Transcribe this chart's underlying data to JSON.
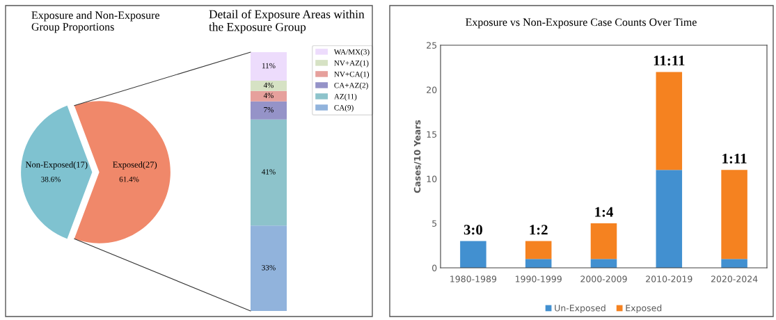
{
  "chart_data": [
    {
      "type": "pie",
      "title": "Exposure and Non-Exposure\nGroup Proportions",
      "categories": [
        "Non-Exposed(17)",
        "Exposed(27)"
      ],
      "values": [
        38.6,
        61.4
      ],
      "value_labels": [
        "38.6%",
        "61.4%"
      ],
      "colors": [
        "#7fc2d0",
        "#f0886a"
      ]
    },
    {
      "type": "bar",
      "title": "Detail of Exposure Areas within\nthe Exposure Group",
      "stacked": true,
      "categories": [
        null
      ],
      "legend": "right",
      "series": [
        {
          "name": "CA(9)",
          "color": "#91b3dc",
          "values": [
            33
          ],
          "value_labels": [
            "33%"
          ]
        },
        {
          "name": "AZ(11)",
          "color": "#8dc3cb",
          "values": [
            41
          ],
          "value_labels": [
            "41%"
          ]
        },
        {
          "name": "CA+AZ(2)",
          "color": "#9593c8",
          "values": [
            7
          ],
          "value_labels": [
            "7%"
          ]
        },
        {
          "name": "NV+CA(1)",
          "color": "#e6a09c",
          "values": [
            4
          ],
          "value_labels": [
            "4%"
          ]
        },
        {
          "name": "NV+AZ(1)",
          "color": "#d6e2c4",
          "values": [
            4
          ],
          "value_labels": [
            "4%"
          ]
        },
        {
          "name": "WA/MX(3)",
          "color": "#eddcfc",
          "values": [
            11
          ],
          "value_labels": [
            "11%"
          ]
        }
      ]
    },
    {
      "type": "bar",
      "title": "Exposure vs Non-Exposure Case Counts Over Time",
      "ylabel": "Cases/10 Years",
      "stacked": true,
      "categories": [
        "1980-1989",
        "1990-1999",
        "2000-2009",
        "2010-2019",
        "2020-2024"
      ],
      "ylim": [
        0,
        25
      ],
      "yticks": [
        0,
        5,
        10,
        15,
        20,
        25
      ],
      "grid": false,
      "legend": "bottom",
      "annotations": [
        {
          "text": "3:0",
          "x": "1980-1989",
          "y": 3
        },
        {
          "text": "1:2",
          "x": "1990-1999",
          "y": 3
        },
        {
          "text": "1:4",
          "x": "2000-2009",
          "y": 5
        },
        {
          "text": "11:11",
          "x": "2010-2019",
          "y": 22
        },
        {
          "text": "1:11",
          "x": "2020-2024",
          "y": 11
        }
      ],
      "series": [
        {
          "name": "Un-Exposed",
          "color": "#4290d0",
          "values": [
            3,
            1,
            1,
            11,
            1
          ]
        },
        {
          "name": "Exposed",
          "color": "#f58220",
          "values": [
            0,
            2,
            4,
            11,
            10
          ]
        }
      ]
    }
  ]
}
